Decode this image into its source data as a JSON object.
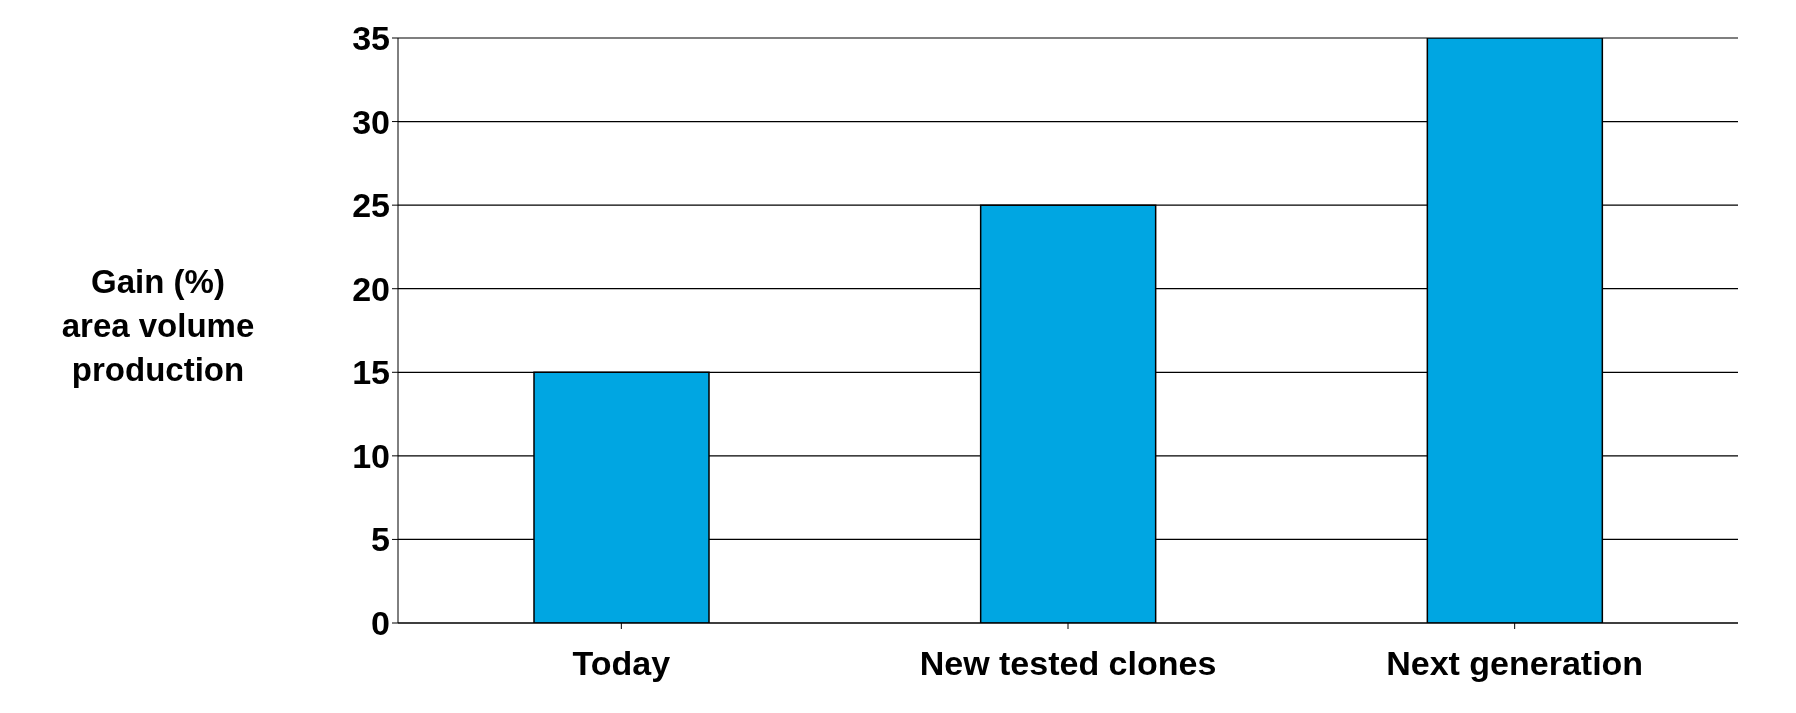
{
  "chart_data": {
    "type": "bar",
    "ylabel": "Gain (%)\narea volume production",
    "categories": [
      "Today",
      "New tested clones",
      "Next generation"
    ],
    "values": [
      15,
      25,
      35
    ],
    "color": "#00a6e2",
    "ylim": [
      0,
      35
    ],
    "yticks": [
      0,
      5,
      10,
      15,
      20,
      25,
      30,
      35
    ],
    "grid": "y"
  }
}
